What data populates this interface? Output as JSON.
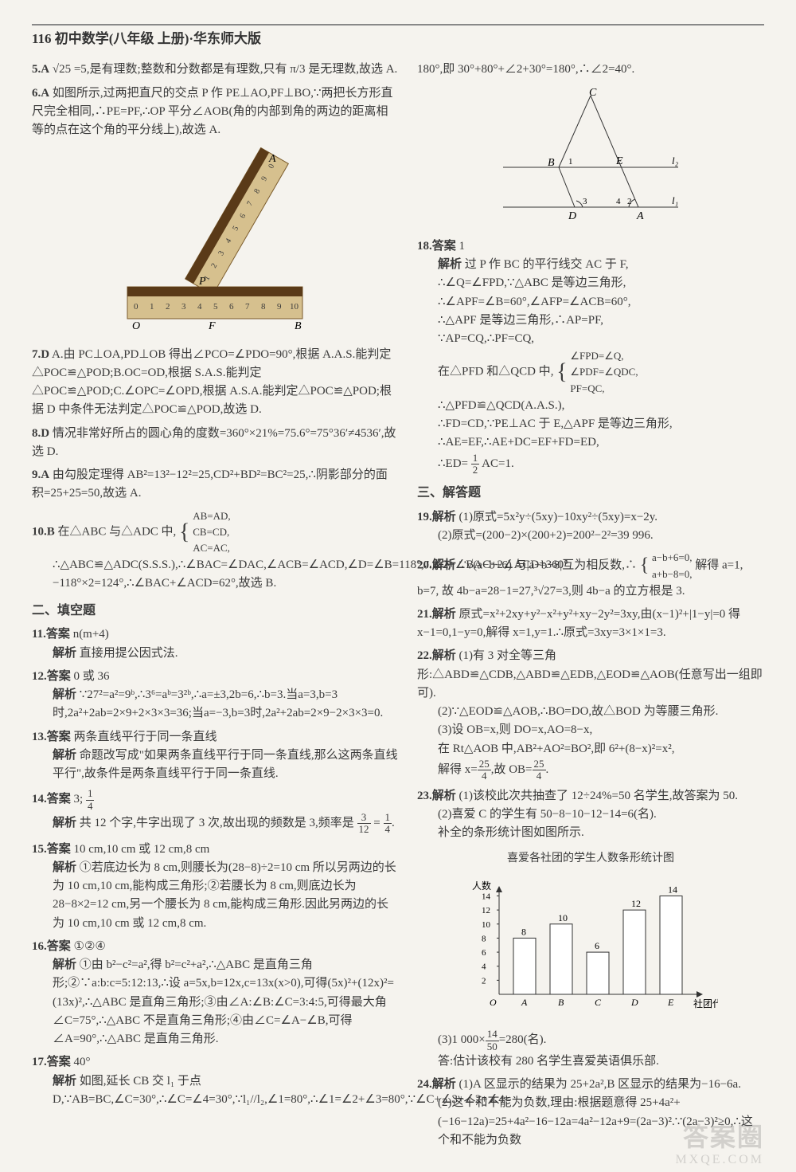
{
  "header": "116 初中数学(八年级 上册)·华东师大版",
  "left": {
    "q5": {
      "num": "5.A",
      "text": "√25 =5,是有理数;整数和分数都是有理数,只有 π/3 是无理数,故选 A."
    },
    "q6": {
      "num": "6.A",
      "text": "如图所示,过两把直尺的交点 P 作 PE⊥AO,PF⊥BO,∵两把长方形直尺完全相同,∴PE=PF,∴OP 平分∠AOB(角的内部到角的两边的距离相等的点在这个角的平分线上),故选 A."
    },
    "fig_ruler": {
      "label_A": "A",
      "label_O": "O",
      "label_F": "F",
      "label_B": "B",
      "label_P": "P",
      "ticks": [
        "0",
        "1",
        "2",
        "3",
        "4",
        "5",
        "6",
        "7",
        "8",
        "9",
        "10"
      ],
      "diag_ticks": [
        "1",
        "2",
        "3",
        "4",
        "5",
        "6",
        "7",
        "8",
        "9",
        "0"
      ],
      "ruler_color": "#a07c4a",
      "body_color": "#d6c08e"
    },
    "q7": {
      "num": "7.D",
      "text": "A.由 PC⊥OA,PD⊥OB 得出∠PCO=∠PDO=90°,根据 A.A.S.能判定△POC≌△POD;B.OC=OD,根据 S.A.S.能判定△POC≌△POD;C.∠OPC=∠OPD,根据 A.S.A.能判定△POC≌△POD;根据 D 中条件无法判定△POC≌△POD,故选 D."
    },
    "q8": {
      "num": "8.D",
      "text": "情况非常好所占的圆心角的度数=360°×21%=75.6°=75°36′≠4536′,故选 D."
    },
    "q9": {
      "num": "9.A",
      "text": "由勾股定理得 AB²=13²−12²=25,CD²+BD²=BC²=25,∴阴影部分的面积=25+25=50,故选 A."
    },
    "q10": {
      "num": "10.B",
      "text1": "在△ABC 与△ADC 中,",
      "brace": [
        "AB=AD,",
        "CB=CD,",
        "AC=AC,"
      ],
      "text2": "∴△ABC≌△ADC(S.S.S.),∴∠BAC=∠DAC,∠ACB=∠ACD,∠D=∠B=118°,∴∠2+∠BAC+2∠ACD=360°−118°×2=124°,∴∠BAC+∠ACD=62°,故选 B."
    },
    "section2": "二、填空题",
    "q11": {
      "num": "11.答案",
      "ans": "n(m+4)",
      "expl": "直接用提公因式法."
    },
    "q12": {
      "num": "12.答案",
      "ans": "0 或 36",
      "expl": "∵27²=a²=9ᵇ,∴3⁶=aᵇ=3²ᵇ,∴a=±3,2b=6,∴b=3.当a=3,b=3时,2a²+2ab=2×9+2×3×3=36;当a=−3,b=3时,2a²+2ab=2×9−2×3×3=0."
    },
    "q13": {
      "num": "13.答案",
      "ans": "两条直线平行于同一条直线",
      "expl": "命题改写成\"如果两条直线平行于同一条直线,那么这两条直线平行\",故条件是两条直线平行于同一条直线."
    },
    "q14": {
      "num": "14.答案",
      "ans": "3; 1/4",
      "expl": "共 12 个字,牛字出现了 3 次,故出现的频数是 3,频率是 3/12 = 1/4."
    },
    "q15": {
      "num": "15.答案",
      "ans": "10 cm,10 cm 或 12 cm,8 cm",
      "expl": "①若底边长为 8 cm,则腰长为(28−8)÷2=10 cm 所以另两边的长为 10 cm,10 cm,能构成三角形;②若腰长为 8 cm,则底边长为 28−8×2=12 cm,另一个腰长为 8 cm,能构成三角形.因此另两边的长为 10 cm,10 cm 或 12 cm,8 cm."
    },
    "q16": {
      "num": "16.答案",
      "ans": "①②④",
      "expl": "①由 b²−c²=a²,得 b²=c²+a²,∴△ABC 是直角三角形;②∵a:b:c=5:12:13,∴设 a=5x,b=12x,c=13x(x>0),可得(5x)²+(12x)²=(13x)²,∴△ABC 是直角三角形;③由∠A:∠B:∠C=3:4:5,可得最大角∠C=75°,∴△ABC 不是直角三角形;④由∠C=∠A−∠B,可得∠A=90°,∴△ABC 是直角三角形."
    },
    "q17": {
      "num": "17.答案",
      "ans": "40°",
      "expl": "如图,延长 CB 交 l₁ 于点 D,∵AB=BC,∠C=30°,∴∠C=∠4=30°,∵l₁//l₂,∠1=80°,∴∠1=∠2+∠3=80°,∵∠C+∠3+∠2+∠4="
    }
  },
  "right": {
    "cont17": "180°,即 30°+80°+∠2+30°=180°,∴∠2=40°.",
    "fig_tri": {
      "C": "C",
      "B": "B",
      "E": "E",
      "D": "D",
      "A": "A",
      "l1": "l₁",
      "l2": "l₂",
      "a1": "1",
      "a2": "2",
      "a3": "3",
      "a4": "4"
    },
    "q18": {
      "num": "18.答案",
      "ans": "1",
      "lines": [
        "过 P 作 BC 的平行线交 AC 于 F,",
        "∴∠Q=∠FPD,∵△ABC 是等边三角形,",
        "∴∠APF=∠B=60°,∠AFP=∠ACB=60°,",
        "∴△APF 是等边三角形,∴AP=PF,",
        "∵AP=CQ,∴PF=CQ,",
        "在△PFD 和△QCD 中,",
        "∠FPD=∠Q,",
        "∠PDF=∠QDC,",
        "PF=QC,",
        "∴△PFD≌△QCD(A.A.S.),",
        "∴FD=CD,∵PE⊥AC 于 E,△APF 是等边三角形,",
        "∴AE=EF,∴AE+DC=EF+FD=ED,",
        "∴ED= ½ AC=1."
      ]
    },
    "section3": "三、解答题",
    "q19": {
      "num": "19.解析",
      "lines": [
        "(1)原式=5x²y÷(5xy)−10xy²÷(5xy)=x−2y.",
        "(2)原式=(200−2)×(200+2)=200²−2²=39 996."
      ]
    },
    "q20": {
      "num": "20.解析",
      "text": "∵√(a−b+6) 与|a+b−8|互为相反数,∴",
      "brace": [
        "a−b+6=0,",
        "a+b−8=0,"
      ],
      "text2": "解得 a=1, b=7, 故 4b−a=28−1=27,³√27=3,则 4b−a 的立方根是 3."
    },
    "q21": {
      "num": "21.解析",
      "text": "原式=x²+2xy+y²−x²+y²+xy−2y²=3xy,由(x−1)²+|1−y|=0 得 x−1=0,1−y=0,解得 x=1,y=1.∴原式=3xy=3×1×1=3."
    },
    "q22": {
      "num": "22.解析",
      "lines": [
        "(1)有 3 对全等三角形:△ABD≌△CDB,△ABD≌△EDB,△EOD≌△AOB(任意写出一组即可).",
        "(2)∵△EOD≌△AOB,∴BO=DO,故△BOD 为等腰三角形.",
        "(3)设 OB=x,则 DO=x,AO=8−x,",
        "在 Rt△AOB 中,AB²+AO²=BO²,即 6²+(8−x)²=x²,",
        "解得 x=25/4,故 OB=25/4."
      ]
    },
    "q23": {
      "num": "23.解析",
      "lines": [
        "(1)该校此次共抽查了 12÷24%=50 名学生,故答案为 50.",
        "(2)喜爱 C 的学生有 50−8−10−12−14=6(名).",
        "补全的条形统计图如图所示."
      ]
    },
    "chart": {
      "title": "喜爱各社团的学生人数条形统计图",
      "ylabel": "人数↑",
      "xlabel": "社团代号",
      "categories": [
        "A",
        "B",
        "C",
        "D",
        "E"
      ],
      "values": [
        8,
        10,
        6,
        12,
        14
      ],
      "ymax": 14,
      "ytick_step": 2,
      "bar_color": "#ffffff",
      "bar_border": "#333333",
      "axis_color": "#333333",
      "bg": "#f5f3ee",
      "label_fontsize": 12,
      "title_fontsize": 14
    },
    "q23b": "(3)1 000× 14/50 =280(名).\n答:估计该校有 280 名学生喜爱英语俱乐部.",
    "q24": {
      "num": "24.解析",
      "lines": [
        "(1)A 区显示的结果为 25+2a²,B 区显示的结果为−16−6a.",
        "(2)这个和不能为负数,理由:根据题意得 25+4a²+(−16−12a)=25+4a²−16−12a=4a²−12a+9=(2a−3)².∵(2a−3)²≥0,∴这个和不能为负数"
      ]
    }
  },
  "watermark": "答案圈",
  "watermark_sub": "MXQE.COM"
}
